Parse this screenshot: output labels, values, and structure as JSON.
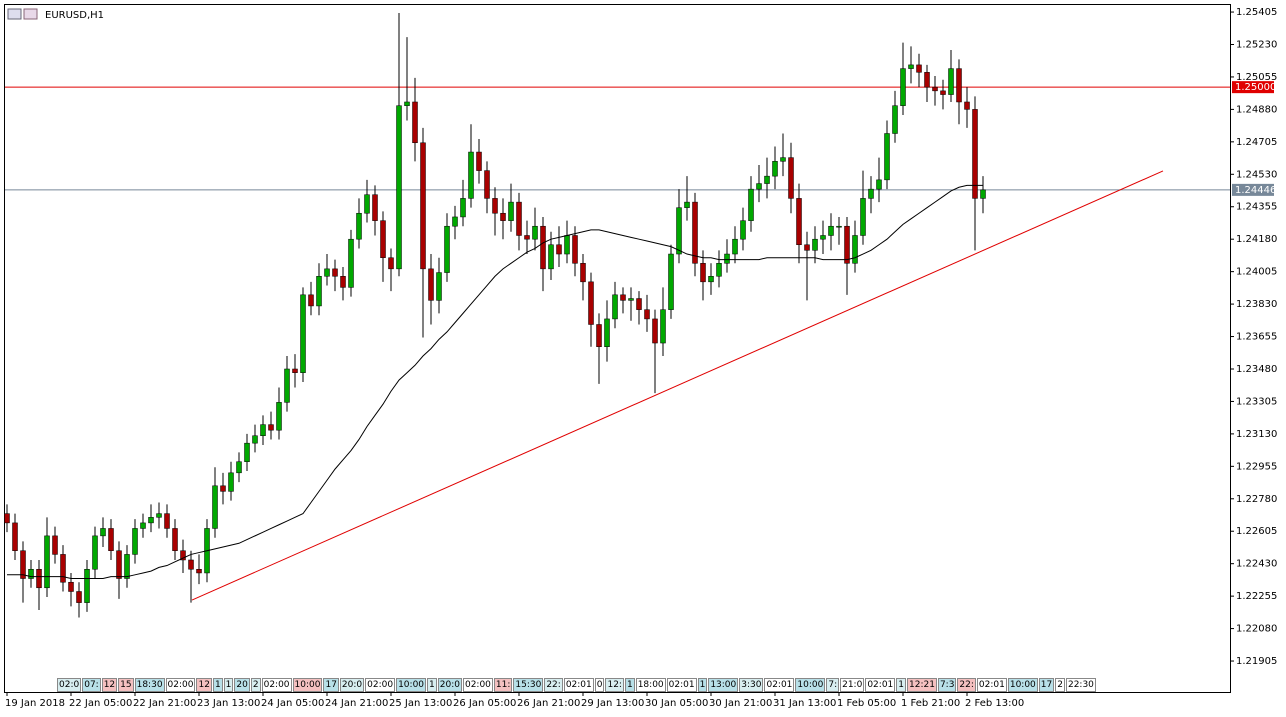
{
  "chart_data": {
    "type": "candlestick",
    "title": "EURUSD,H1",
    "up_color": "#00a800",
    "down_color": "#a80000",
    "ylim": [
      1.21738,
      1.25443
    ],
    "yticks": [
      {
        "value": 1.25405,
        "label": "1.25405"
      },
      {
        "value": 1.2523,
        "label": "1.25230"
      },
      {
        "value": 1.25055,
        "label": "1.25055"
      },
      {
        "value": 1.2488,
        "label": "1.24880"
      },
      {
        "value": 1.24705,
        "label": "1.24705"
      },
      {
        "value": 1.2453,
        "label": "1.24530"
      },
      {
        "value": 1.24355,
        "label": "1.24355"
      },
      {
        "value": 1.2418,
        "label": "1.24180"
      },
      {
        "value": 1.24005,
        "label": "1.24005"
      },
      {
        "value": 1.2383,
        "label": "1.23830"
      },
      {
        "value": 1.23655,
        "label": "1.23655"
      },
      {
        "value": 1.2348,
        "label": "1.23480"
      },
      {
        "value": 1.23305,
        "label": "1.23305"
      },
      {
        "value": 1.2313,
        "label": "1.23130"
      },
      {
        "value": 1.22955,
        "label": "1.22955"
      },
      {
        "value": 1.2278,
        "label": "1.22780"
      },
      {
        "value": 1.22605,
        "label": "1.22605"
      },
      {
        "value": 1.2243,
        "label": "1.22430"
      },
      {
        "value": 1.22255,
        "label": "1.22255"
      },
      {
        "value": 1.2208,
        "label": "1.22080"
      },
      {
        "value": 1.21905,
        "label": "1.21905"
      }
    ],
    "categories": [
      "19 Jan 2018",
      null,
      null,
      null,
      null,
      null,
      null,
      null,
      "22 Jan 05:00",
      null,
      null,
      null,
      null,
      null,
      null,
      null,
      "22 Jan 21:00",
      null,
      null,
      null,
      null,
      null,
      null,
      null,
      "23 Jan 13:00",
      null,
      null,
      null,
      null,
      null,
      null,
      null,
      "24 Jan 05:00",
      null,
      null,
      null,
      null,
      null,
      null,
      null,
      "24 Jan 21:00",
      null,
      null,
      null,
      null,
      null,
      null,
      null,
      "25 Jan 13:00",
      null,
      null,
      null,
      null,
      null,
      null,
      null,
      "26 Jan 05:00",
      null,
      null,
      null,
      null,
      null,
      null,
      null,
      "26 Jan 21:00",
      null,
      null,
      null,
      null,
      null,
      null,
      null,
      "29 Jan 13:00",
      null,
      null,
      null,
      null,
      null,
      null,
      null,
      "30 Jan 05:00",
      null,
      null,
      null,
      null,
      null,
      null,
      null,
      "30 Jan 21:00",
      null,
      null,
      null,
      null,
      null,
      null,
      null,
      "31 Jan 13:00",
      null,
      null,
      null,
      null,
      null,
      null,
      null,
      "1 Feb 05:00",
      null,
      null,
      null,
      null,
      null,
      null,
      null,
      "1 Feb 21:00",
      null,
      null,
      null,
      null,
      null,
      null,
      null,
      "2 Feb 13:00",
      null,
      null
    ],
    "open": [
      1.227,
      1.2265,
      1.225,
      1.2235,
      1.224,
      1.223,
      1.2258,
      1.2248,
      1.2233,
      1.2228,
      1.2222,
      1.224,
      1.2258,
      1.2262,
      1.225,
      1.2235,
      1.2248,
      1.2262,
      1.2265,
      1.2268,
      1.227,
      1.2262,
      1.225,
      1.2245,
      1.224,
      1.2238,
      1.2262,
      1.2285,
      1.2282,
      1.2292,
      1.2298,
      1.2308,
      1.2312,
      1.2318,
      1.2315,
      1.233,
      1.2348,
      1.2346,
      1.2388,
      1.2382,
      1.2398,
      1.2402,
      1.2398,
      1.2392,
      1.2418,
      1.2432,
      1.2442,
      1.2428,
      1.2408,
      1.2402,
      1.249,
      1.2492,
      1.247,
      1.2402,
      1.2385,
      1.24,
      1.2425,
      1.243,
      1.244,
      1.2465,
      1.2455,
      1.244,
      1.2432,
      1.2428,
      1.2438,
      1.242,
      1.2418,
      1.2425,
      1.2402,
      1.2415,
      1.241,
      1.242,
      1.2405,
      1.2395,
      1.2372,
      1.236,
      1.2375,
      1.2388,
      1.2385,
      1.2386,
      1.238,
      1.2375,
      1.2362,
      1.238,
      1.241,
      1.2435,
      1.2438,
      1.2405,
      1.2395,
      1.2398,
      1.2405,
      1.241,
      1.2418,
      1.2428,
      1.2445,
      1.2448,
      1.2452,
      1.246,
      1.2462,
      1.244,
      1.2415,
      1.2412,
      1.2418,
      1.242,
      1.2425,
      1.2425,
      1.2405,
      1.242,
      1.244,
      1.2445,
      1.245,
      1.2475,
      1.249,
      1.251,
      1.2512,
      1.2508,
      1.25,
      1.2498,
      1.2496,
      1.251,
      1.2492,
      1.2488,
      1.244
    ],
    "high": [
      1.2275,
      1.227,
      1.2255,
      1.2245,
      1.2245,
      1.2268,
      1.2263,
      1.2253,
      1.2238,
      1.2233,
      1.2245,
      1.2263,
      1.2268,
      1.2267,
      1.2255,
      1.2253,
      1.2267,
      1.227,
      1.2275,
      1.2276,
      1.2275,
      1.2267,
      1.2256,
      1.225,
      1.2248,
      1.2267,
      1.2295,
      1.2292,
      1.2298,
      1.2303,
      1.2313,
      1.2318,
      1.2323,
      1.2325,
      1.2338,
      1.2355,
      1.2356,
      1.2392,
      1.2395,
      1.2405,
      1.241,
      1.2407,
      1.2403,
      1.2423,
      1.244,
      1.245,
      1.2447,
      1.2433,
      1.2413,
      1.254,
      1.2527,
      1.2505,
      1.2478,
      1.241,
      1.2408,
      1.2432,
      1.2436,
      1.245,
      1.248,
      1.2472,
      1.246,
      1.2446,
      1.244,
      1.2448,
      1.2443,
      1.2428,
      1.2435,
      1.243,
      1.2422,
      1.2425,
      1.2428,
      1.2425,
      1.241,
      1.24,
      1.2378,
      1.2385,
      1.2395,
      1.2392,
      1.2392,
      1.239,
      1.2388,
      1.238,
      1.2392,
      1.2415,
      1.2445,
      1.2452,
      1.2443,
      1.2412,
      1.2405,
      1.2412,
      1.2418,
      1.2425,
      1.2435,
      1.2452,
      1.2458,
      1.2462,
      1.2468,
      1.2475,
      1.247,
      1.2448,
      1.2422,
      1.2425,
      1.2428,
      1.2432,
      1.243,
      1.243,
      1.2428,
      1.2455,
      1.2452,
      1.2462,
      1.2482,
      1.2498,
      1.2524,
      1.2522,
      1.2518,
      1.2512,
      1.2506,
      1.2504,
      1.252,
      1.2515,
      1.25,
      1.2495,
      1.2452
    ],
    "low": [
      1.226,
      1.2245,
      1.2222,
      1.223,
      1.2218,
      1.2225,
      1.2243,
      1.2228,
      1.222,
      1.2214,
      1.2217,
      1.2235,
      1.2252,
      1.2245,
      1.2224,
      1.223,
      1.2243,
      1.2257,
      1.226,
      1.2262,
      1.2257,
      1.2245,
      1.2238,
      1.2222,
      1.2232,
      1.2233,
      1.2257,
      1.2275,
      1.2277,
      1.2287,
      1.2293,
      1.2303,
      1.2307,
      1.231,
      1.231,
      1.2325,
      1.2338,
      1.2341,
      1.2377,
      1.2377,
      1.2393,
      1.239,
      1.2385,
      1.2387,
      1.2413,
      1.2427,
      1.242,
      1.2395,
      1.239,
      1.2398,
      1.2482,
      1.246,
      1.2365,
      1.2372,
      1.2378,
      1.2395,
      1.2418,
      1.2425,
      1.2435,
      1.2448,
      1.2432,
      1.242,
      1.2418,
      1.2422,
      1.2412,
      1.241,
      1.2412,
      1.239,
      1.2396,
      1.2403,
      1.2405,
      1.2398,
      1.2385,
      1.236,
      1.234,
      1.2352,
      1.237,
      1.2378,
      1.2374,
      1.2372,
      1.2368,
      1.2335,
      1.2355,
      1.2375,
      1.2405,
      1.2428,
      1.2398,
      1.2385,
      1.2388,
      1.2392,
      1.24,
      1.2405,
      1.2412,
      1.2422,
      1.2438,
      1.244,
      1.2445,
      1.2452,
      1.2432,
      1.2405,
      1.2385,
      1.2405,
      1.241,
      1.2412,
      1.2415,
      1.2388,
      1.24,
      1.2415,
      1.2432,
      1.2438,
      1.2445,
      1.247,
      1.2485,
      1.2502,
      1.25,
      1.2492,
      1.249,
      1.2488,
      1.2492,
      1.248,
      1.2478,
      1.2412,
      1.2432
    ],
    "close": [
      1.2265,
      1.225,
      1.2235,
      1.224,
      1.223,
      1.2258,
      1.2248,
      1.2233,
      1.2228,
      1.2222,
      1.224,
      1.2258,
      1.2262,
      1.225,
      1.2235,
      1.2248,
      1.2262,
      1.2265,
      1.2268,
      1.227,
      1.2262,
      1.225,
      1.2245,
      1.224,
      1.2238,
      1.2262,
      1.2285,
      1.2282,
      1.2292,
      1.2298,
      1.2308,
      1.2312,
      1.2318,
      1.2315,
      1.233,
      1.2348,
      1.2346,
      1.2388,
      1.2382,
      1.2398,
      1.2402,
      1.2398,
      1.2392,
      1.2418,
      1.2432,
      1.2442,
      1.2428,
      1.2408,
      1.2402,
      1.249,
      1.2492,
      1.247,
      1.2402,
      1.2385,
      1.24,
      1.2425,
      1.243,
      1.244,
      1.2465,
      1.2455,
      1.244,
      1.2432,
      1.2428,
      1.2438,
      1.242,
      1.2418,
      1.2425,
      1.2402,
      1.2415,
      1.241,
      1.242,
      1.2405,
      1.2395,
      1.2372,
      1.236,
      1.2375,
      1.2388,
      1.2385,
      1.2386,
      1.238,
      1.2375,
      1.2362,
      1.238,
      1.241,
      1.2435,
      1.2438,
      1.2405,
      1.2395,
      1.2398,
      1.2405,
      1.241,
      1.2418,
      1.2428,
      1.2445,
      1.2448,
      1.2452,
      1.246,
      1.2462,
      1.244,
      1.2415,
      1.2412,
      1.2418,
      1.242,
      1.2425,
      1.2425,
      1.2405,
      1.242,
      1.244,
      1.2445,
      1.245,
      1.2475,
      1.249,
      1.251,
      1.2512,
      1.2508,
      1.25,
      1.2498,
      1.2496,
      1.251,
      1.2492,
      1.2488,
      1.244,
      1.24446
    ],
    "moving_average": {
      "color": "#000000",
      "values": [
        1.2237,
        1.2237,
        1.2237,
        1.2236,
        1.2236,
        1.2236,
        1.2236,
        1.2236,
        1.2235,
        1.2235,
        1.2235,
        1.2235,
        1.2235,
        1.2236,
        1.2236,
        1.2236,
        1.2237,
        1.2238,
        1.2239,
        1.2241,
        1.2242,
        1.2244,
        1.2246,
        1.2248,
        1.2249,
        1.225,
        1.2251,
        1.2252,
        1.2253,
        1.2254,
        1.2256,
        1.2258,
        1.226,
        1.2262,
        1.2264,
        1.2266,
        1.2268,
        1.227,
        1.2276,
        1.2282,
        1.2288,
        1.2294,
        1.2299,
        1.2304,
        1.231,
        1.2317,
        1.2323,
        1.2329,
        1.2336,
        1.2342,
        1.2346,
        1.235,
        1.2355,
        1.2359,
        1.2364,
        1.2368,
        1.2373,
        1.2378,
        1.2383,
        1.2388,
        1.2393,
        1.2398,
        1.2402,
        1.2405,
        1.2408,
        1.2411,
        1.2413,
        1.2416,
        1.2418,
        1.2419,
        1.242,
        1.2421,
        1.2422,
        1.2423,
        1.2423,
        1.2422,
        1.2421,
        1.242,
        1.2419,
        1.2418,
        1.2417,
        1.2416,
        1.2415,
        1.2414,
        1.2412,
        1.241,
        1.2409,
        1.2408,
        1.2408,
        1.2407,
        1.2407,
        1.2407,
        1.2407,
        1.2407,
        1.2407,
        1.2408,
        1.2408,
        1.2408,
        1.2408,
        1.2408,
        1.2408,
        1.2408,
        1.2407,
        1.2407,
        1.2407,
        1.2407,
        1.2408,
        1.241,
        1.2412,
        1.2415,
        1.2418,
        1.2422,
        1.2426,
        1.2429,
        1.2432,
        1.2435,
        1.2438,
        1.2441,
        1.2444,
        1.2446,
        1.2447,
        1.2447,
        1.2447
      ]
    },
    "levels": [
      {
        "value": 1.25,
        "label": "1.25000",
        "color": "#e00000"
      },
      {
        "value": 1.24446,
        "label": "1.24446",
        "color": "#778899"
      }
    ],
    "trendline": {
      "color": "#e00000",
      "values": [
        1.22234,
        1.24548
      ]
    },
    "events": [
      {
        "label": "02:0",
        "color": "#d8eef0"
      },
      {
        "label": "07:",
        "color": "#b8e0e8"
      },
      {
        "label": "12",
        "color": "#f4c0c0"
      },
      {
        "label": "15",
        "color": "#f4c0c0"
      },
      {
        "label": "18:30",
        "color": "#b8e0e8"
      },
      {
        "label": "02:00",
        "color": "#ffffff"
      },
      {
        "label": "12",
        "color": "#f4c0c0"
      },
      {
        "label": "1",
        "color": "#b8e0e8"
      },
      {
        "label": "1",
        "color": "#d8eef0"
      },
      {
        "label": "20",
        "color": "#b8e0e8"
      },
      {
        "label": "2",
        "color": "#d8eef0"
      },
      {
        "label": "02:00",
        "color": "#ffffff"
      },
      {
        "label": "10:00",
        "color": "#f4c0c0"
      },
      {
        "label": "17",
        "color": "#b8e0e8"
      },
      {
        "label": "20:0",
        "color": "#d8eef0"
      },
      {
        "label": "02:00",
        "color": "#ffffff"
      },
      {
        "label": "10:00",
        "color": "#b8e0e8"
      },
      {
        "label": "1",
        "color": "#d8eef0"
      },
      {
        "label": "20:0",
        "color": "#b8e0e8"
      },
      {
        "label": "02:00",
        "color": "#ffffff"
      },
      {
        "label": "11:",
        "color": "#f4c0c0"
      },
      {
        "label": "15:30",
        "color": "#b8e0e8"
      },
      {
        "label": "22:",
        "color": "#d8eef0"
      },
      {
        "label": "02:01",
        "color": "#ffffff"
      },
      {
        "label": "0",
        "color": "#ffffff"
      },
      {
        "label": "12:",
        "color": "#d8eef0"
      },
      {
        "label": "1",
        "color": "#b8e0e8"
      },
      {
        "label": "18:00",
        "color": "#ffffff"
      },
      {
        "label": "02:01",
        "color": "#ffffff"
      },
      {
        "label": "1",
        "color": "#b8e0e8"
      },
      {
        "label": "13:00",
        "color": "#b8e0e8"
      },
      {
        "label": "3:30",
        "color": "#d8eef0"
      },
      {
        "label": "02:01",
        "color": "#ffffff"
      },
      {
        "label": "10:00",
        "color": "#b8e0e8"
      },
      {
        "label": "7:",
        "color": "#d8eef0"
      },
      {
        "label": "21:0",
        "color": "#ffffff"
      },
      {
        "label": "02:01",
        "color": "#ffffff"
      },
      {
        "label": "1",
        "color": "#d8eef0"
      },
      {
        "label": "12:21",
        "color": "#f4c0c0"
      },
      {
        "label": "7:3",
        "color": "#b8e0e8"
      },
      {
        "label": "22:",
        "color": "#f4c0c0"
      },
      {
        "label": "02:01",
        "color": "#ffffff"
      },
      {
        "label": "10:00",
        "color": "#b8e0e8"
      },
      {
        "label": "17",
        "color": "#b8e0e8"
      },
      {
        "label": "2",
        "color": "#ffffff"
      },
      {
        "label": "22:30",
        "color": "#ffffff"
      }
    ]
  }
}
